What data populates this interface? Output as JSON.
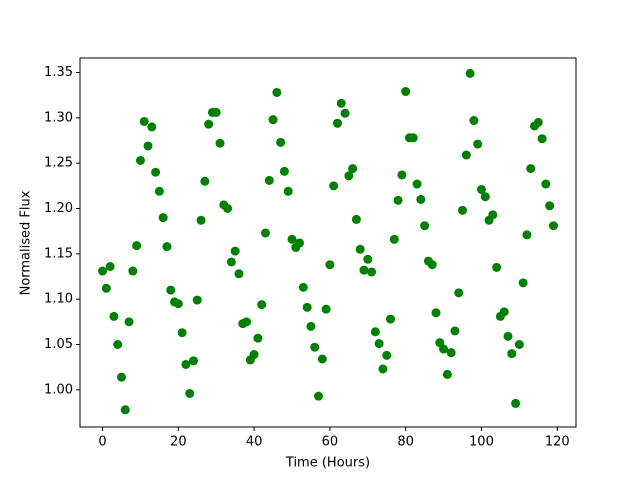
{
  "chart_data": {
    "type": "scatter",
    "x_label": "Time (Hours)",
    "y_label": "Normalised Flux",
    "color": "#008000",
    "x": [
      0,
      1,
      2,
      3,
      4,
      5,
      6,
      7,
      8,
      9,
      10,
      11,
      12,
      13,
      14,
      15,
      16,
      17,
      18,
      19,
      20,
      21,
      22,
      23,
      24,
      25,
      26,
      27,
      28,
      29,
      30,
      31,
      32,
      33,
      34,
      35,
      36,
      37,
      38,
      39,
      40,
      41,
      42,
      43,
      44,
      45,
      46,
      47,
      48,
      49,
      50,
      51,
      52,
      53,
      54,
      55,
      56,
      57,
      58,
      59,
      60,
      61,
      62,
      63,
      64,
      65,
      66,
      67,
      68,
      69,
      70,
      71,
      72,
      73,
      74,
      75,
      76,
      77,
      78,
      79,
      80,
      81,
      82,
      83,
      84,
      85,
      86,
      87,
      88,
      89,
      90,
      91,
      92,
      93,
      94,
      95,
      96,
      97,
      98,
      99,
      100,
      101,
      102,
      103,
      104,
      105,
      106,
      107,
      108,
      109,
      110,
      111,
      112,
      113,
      114,
      115,
      116,
      117,
      118,
      119
    ],
    "values": [
      1.131,
      1.112,
      1.136,
      1.081,
      1.05,
      1.014,
      0.978,
      1.075,
      1.131,
      1.159,
      1.253,
      1.296,
      1.269,
      1.29,
      1.24,
      1.219,
      1.19,
      1.158,
      1.11,
      1.097,
      1.095,
      1.063,
      1.028,
      0.996,
      1.032,
      1.099,
      1.187,
      1.23,
      1.293,
      1.306,
      1.306,
      1.272,
      1.204,
      1.2,
      1.141,
      1.153,
      1.128,
      1.073,
      1.075,
      1.033,
      1.039,
      1.057,
      1.094,
      1.173,
      1.231,
      1.298,
      1.328,
      1.273,
      1.241,
      1.219,
      1.166,
      1.157,
      1.162,
      1.113,
      1.091,
      1.07,
      1.047,
      0.993,
      1.034,
      1.089,
      1.138,
      1.225,
      1.294,
      1.316,
      1.305,
      1.236,
      1.244,
      1.188,
      1.155,
      1.132,
      1.144,
      1.13,
      1.064,
      1.051,
      1.023,
      1.038,
      1.078,
      1.166,
      1.209,
      1.237,
      1.329,
      1.278,
      1.278,
      1.227,
      1.21,
      1.181,
      1.142,
      1.138,
      1.085,
      1.052,
      1.045,
      1.017,
      1.041,
      1.065,
      1.107,
      1.198,
      1.259,
      1.349,
      1.297,
      1.271,
      1.221,
      1.213,
      1.187,
      1.193,
      1.135,
      1.081,
      1.086,
      1.059,
      1.04,
      0.985,
      1.05,
      1.118,
      1.171,
      1.244,
      1.291,
      1.295,
      1.277,
      1.227,
      1.203,
      1.181
    ],
    "xlim": [
      -5.95,
      124.95
    ],
    "ylim": [
      0.959,
      1.366
    ],
    "xticks": [
      0,
      20,
      40,
      60,
      80,
      100,
      120
    ],
    "yticks": [
      {
        "value": 1.0,
        "label": "1.00"
      },
      1.05,
      {
        "value": 1.1,
        "label": "1.10"
      },
      1.15,
      {
        "value": 1.2,
        "label": "1.20"
      },
      1.25,
      {
        "value": 1.3,
        "label": "1.30"
      },
      1.35
    ]
  }
}
